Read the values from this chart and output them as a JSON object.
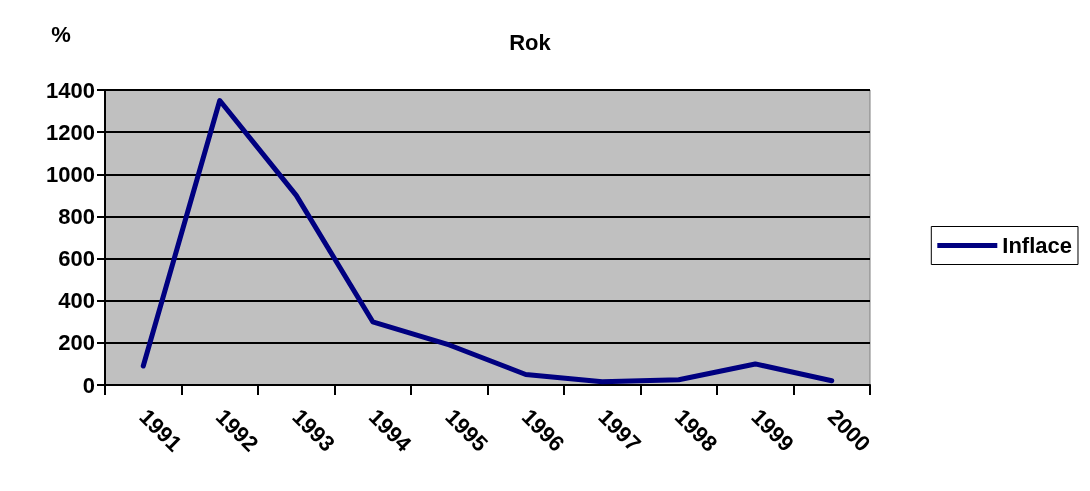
{
  "chart_data": {
    "type": "line",
    "xlabel": "Rok",
    "ylabel": "%",
    "categories": [
      "1991",
      "1992",
      "1993",
      "1994",
      "1995",
      "1996",
      "1997",
      "1998",
      "1999",
      "2000"
    ],
    "series": [
      {
        "name": "Inflace",
        "color": "#000080",
        "values": [
          90,
          1350,
          900,
          300,
          190,
          50,
          15,
          25,
          100,
          20
        ]
      }
    ],
    "ylim": [
      0,
      1400
    ],
    "yticks": [
      0,
      200,
      400,
      600,
      800,
      1000,
      1200,
      1400
    ],
    "grid": "y",
    "legend": "right",
    "marker": "none",
    "line_style": "solid"
  }
}
